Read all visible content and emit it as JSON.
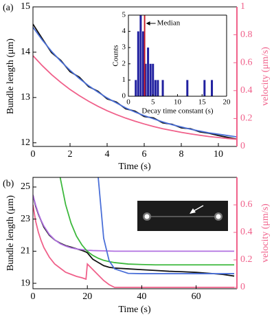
{
  "chart_data": [
    {
      "type": "line",
      "panel_label": "(a)",
      "xlabel": "Time (s)",
      "ylabel": "Bundle length (μm)",
      "y2label": "velocity (μm/s)",
      "xlim": [
        0,
        11
      ],
      "xticks": [
        0,
        2,
        4,
        6,
        8,
        10
      ],
      "ylim": [
        11.92,
        15
      ],
      "yticks": [
        12,
        13,
        14,
        15
      ],
      "y2lim": [
        0,
        1
      ],
      "y2ticks": [
        0,
        0.2,
        0.4,
        0.6,
        0.8,
        1
      ],
      "y2color": "#f0608a",
      "x": [
        0,
        0.5,
        1,
        1.5,
        2,
        2.5,
        3,
        3.5,
        4,
        4.5,
        5,
        5.5,
        6,
        6.5,
        7,
        7.5,
        8,
        8.5,
        9,
        9.5,
        10,
        10.5,
        11
      ],
      "series": [
        {
          "color": "#111111",
          "values": [
            14.62,
            14.3,
            13.99,
            13.82,
            13.57,
            13.45,
            13.24,
            13.14,
            12.97,
            12.9,
            12.75,
            12.7,
            12.58,
            12.55,
            12.44,
            12.41,
            12.33,
            12.31,
            12.24,
            12.21,
            12.16,
            12.12,
            12.08
          ]
        },
        {
          "color": "#4a6fd8",
          "values": [
            14.55,
            14.27,
            14.02,
            13.8,
            13.6,
            13.42,
            13.26,
            13.12,
            12.99,
            12.88,
            12.77,
            12.68,
            12.6,
            12.53,
            12.46,
            12.4,
            12.35,
            12.3,
            12.26,
            12.22,
            12.19,
            12.16,
            12.13
          ]
        },
        {
          "color": "#f0608a",
          "axis": "y2",
          "values": [
            0.65,
            0.579,
            0.515,
            0.459,
            0.408,
            0.364,
            0.324,
            0.288,
            0.256,
            0.228,
            0.203,
            0.181,
            0.161,
            0.143,
            0.127,
            0.114,
            0.101,
            0.09,
            0.08,
            0.071,
            0.064,
            0.057,
            0.051
          ]
        }
      ]
    },
    {
      "type": "bar",
      "xlabel": "Decay time constant (s)",
      "ylabel": "Counts",
      "xlim": [
        0,
        20
      ],
      "xticks": [
        0,
        5,
        10,
        15,
        20
      ],
      "ylim": [
        0,
        5
      ],
      "yticks": [
        0,
        1,
        2,
        3,
        4,
        5
      ],
      "x": [
        1.5,
        2,
        2.5,
        3,
        3.5,
        4,
        4.5,
        5,
        5.5,
        6,
        7,
        12,
        15.5,
        17
      ],
      "values": [
        1,
        4,
        5,
        4,
        2,
        3,
        2,
        2,
        1,
        1,
        1,
        1,
        1,
        1
      ],
      "color": "#2020a0",
      "median": 3.3,
      "median_color": "#c8202a",
      "annotation": "Median"
    },
    {
      "type": "line",
      "panel_label": "(b)",
      "xlabel": "Time (s)",
      "ylabel": "Bundle length (μm)",
      "y2label": "velocity (μm/s)",
      "xlim": [
        0,
        75
      ],
      "xticks": [
        0,
        20,
        40,
        60
      ],
      "ylim": [
        18.66,
        25.6
      ],
      "yticks": [
        19,
        21,
        23,
        25
      ],
      "y2lim": [
        -0.01,
        0.8
      ],
      "y2ticks": [
        0,
        0.2,
        0.4,
        0.6
      ],
      "y2color": "#f0608a",
      "x": [
        0,
        1,
        2,
        3,
        4,
        6,
        8,
        10,
        12,
        14,
        16,
        18,
        19.5,
        20,
        21,
        22,
        24,
        26,
        28,
        30,
        35,
        40,
        45,
        50,
        55,
        60,
        65,
        70,
        74
      ],
      "series": [
        {
          "color": "#111111",
          "values": [
            24.5,
            23.8,
            23.3,
            22.9,
            22.5,
            22.0,
            21.7,
            21.5,
            21.35,
            21.25,
            21.15,
            21.05,
            20.95,
            20.9,
            20.7,
            20.5,
            20.3,
            20.1,
            20.0,
            19.95,
            19.9,
            19.85,
            19.8,
            19.75,
            19.72,
            19.68,
            19.62,
            19.55,
            19.45
          ]
        },
        {
          "color": "#b070e0",
          "values": [
            24.5,
            23.87,
            23.35,
            22.92,
            22.57,
            22.05,
            21.71,
            21.47,
            21.32,
            21.21,
            21.14,
            21.1,
            21.07,
            21.06,
            21.05,
            21.04,
            21.03,
            21.02,
            21.01,
            21.0,
            21.0,
            21.0,
            21.0,
            21.0,
            21.0,
            21.0,
            21.0,
            21.0,
            21.0
          ]
        },
        {
          "color": "#3cb83c",
          "values": [
            null,
            null,
            null,
            null,
            null,
            null,
            null,
            25.6,
            23.91,
            22.75,
            21.94,
            21.39,
            21.09,
            21.0,
            20.86,
            20.74,
            20.56,
            20.43,
            20.35,
            20.29,
            20.2,
            20.17,
            20.15,
            20.15,
            20.15,
            20.15,
            20.15,
            20.15,
            20.15
          ]
        },
        {
          "color": "#4a6fd8",
          "values": [
            null,
            null,
            null,
            null,
            null,
            null,
            null,
            null,
            null,
            null,
            null,
            null,
            null,
            null,
            null,
            null,
            25.6,
            21.81,
            20.41,
            19.9,
            19.62,
            19.6,
            19.6,
            19.6,
            19.6,
            19.6,
            19.6,
            19.6,
            19.6
          ]
        },
        {
          "color": "#f0608a",
          "axis": "y2",
          "values": [
            0.6,
            0.48,
            0.4,
            0.34,
            0.29,
            0.22,
            0.17,
            0.14,
            0.11,
            0.095,
            0.08,
            0.07,
            0.06,
            0.17,
            0.15,
            0.13,
            0.09,
            0.05,
            0.02,
            0,
            0,
            0,
            0,
            0,
            0,
            0,
            0,
            0,
            0
          ]
        }
      ]
    }
  ]
}
